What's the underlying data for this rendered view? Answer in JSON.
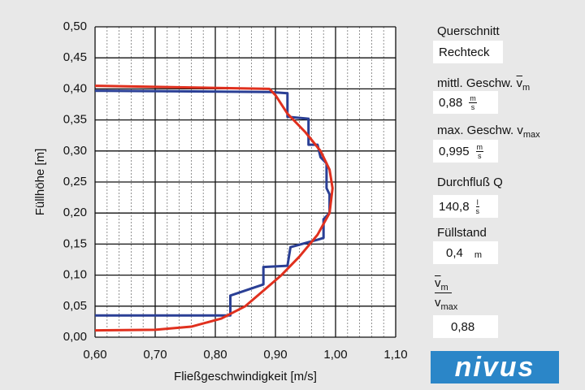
{
  "chart_data": {
    "type": "line",
    "x_label": "Fließgeschwindigkeit [m/s]",
    "y_label": "Füllhöhe [m]",
    "xlim": [
      0.6,
      1.1
    ],
    "xticks": [
      {
        "value": 0.6,
        "label": "0,60"
      },
      {
        "value": 0.7,
        "label": "0,70"
      },
      {
        "value": 0.8,
        "label": "0,80"
      },
      {
        "value": 0.9,
        "label": "0,90"
      },
      {
        "value": 1.0,
        "label": "1,00"
      },
      {
        "value": 1.1,
        "label": "1,10"
      }
    ],
    "ylim": [
      0,
      0.5
    ],
    "yticks": [
      {
        "value": 0,
        "label": "0,00"
      },
      {
        "value": 0.05,
        "label": "0,05"
      },
      {
        "value": 0.1,
        "label": "0,10"
      },
      {
        "value": 0.15,
        "label": "0,15"
      },
      {
        "value": 0.2,
        "label": "0,20"
      },
      {
        "value": 0.25,
        "label": "0,25"
      },
      {
        "value": 0.3,
        "label": "0,30"
      },
      {
        "value": 0.35,
        "label": "0,35"
      },
      {
        "value": 0.4,
        "label": "0,40"
      },
      {
        "value": 0.45,
        "label": "0,45"
      },
      {
        "value": 0.5,
        "label": "0,50"
      }
    ],
    "grid": true,
    "series": [
      {
        "color": "#2a3f95",
        "x": [
          0.6,
          0.89,
          0.92,
          0.92,
          0.955,
          0.955,
          0.97,
          0.975,
          0.985,
          0.985,
          0.99,
          0.99,
          0.98,
          0.98,
          0.97,
          0.925,
          0.92,
          0.88,
          0.88,
          0.825,
          0.825,
          0.6
        ],
        "values": [
          0.397,
          0.395,
          0.393,
          0.355,
          0.352,
          0.31,
          0.31,
          0.29,
          0.28,
          0.24,
          0.23,
          0.2,
          0.19,
          0.16,
          0.157,
          0.145,
          0.115,
          0.113,
          0.085,
          0.067,
          0.035,
          0.035
        ]
      },
      {
        "color": "#e0301e",
        "x": [
          0.6,
          0.89,
          0.9,
          0.92,
          0.95,
          0.975,
          0.99,
          0.995,
          0.99,
          0.97,
          0.94,
          0.91,
          0.88,
          0.85,
          0.81,
          0.76,
          0.7,
          0.6
        ],
        "values": [
          0.405,
          0.4,
          0.39,
          0.36,
          0.33,
          0.3,
          0.27,
          0.24,
          0.2,
          0.165,
          0.13,
          0.1,
          0.075,
          0.05,
          0.03,
          0.017,
          0.012,
          0.011
        ]
      }
    ]
  },
  "panel": {
    "section_label": "Querschnitt",
    "section_value": "Rechteck",
    "vmean_label": "mittl. Geschw. ",
    "vmean_symbol": "v",
    "vmean_sub": "m",
    "vmean_value": "0,88",
    "vmean_unit_num": "m",
    "vmean_unit_den": "s",
    "vmax_label": "max. Geschw. v",
    "vmax_sub": "max",
    "vmax_value": "0,995",
    "vmax_unit_num": "m",
    "vmax_unit_den": "s",
    "flow_label": "Durchfluß Q",
    "flow_value": "140,8",
    "flow_unit_num": "l",
    "flow_unit_den": "s",
    "level_label": "Füllstand",
    "level_value": "0,4",
    "level_unit": "m",
    "ratio_num_symbol": "v",
    "ratio_num_sub": "m",
    "ratio_den_symbol": "v",
    "ratio_den_sub": "max",
    "ratio_value": "0,88",
    "logo": "nivus"
  }
}
